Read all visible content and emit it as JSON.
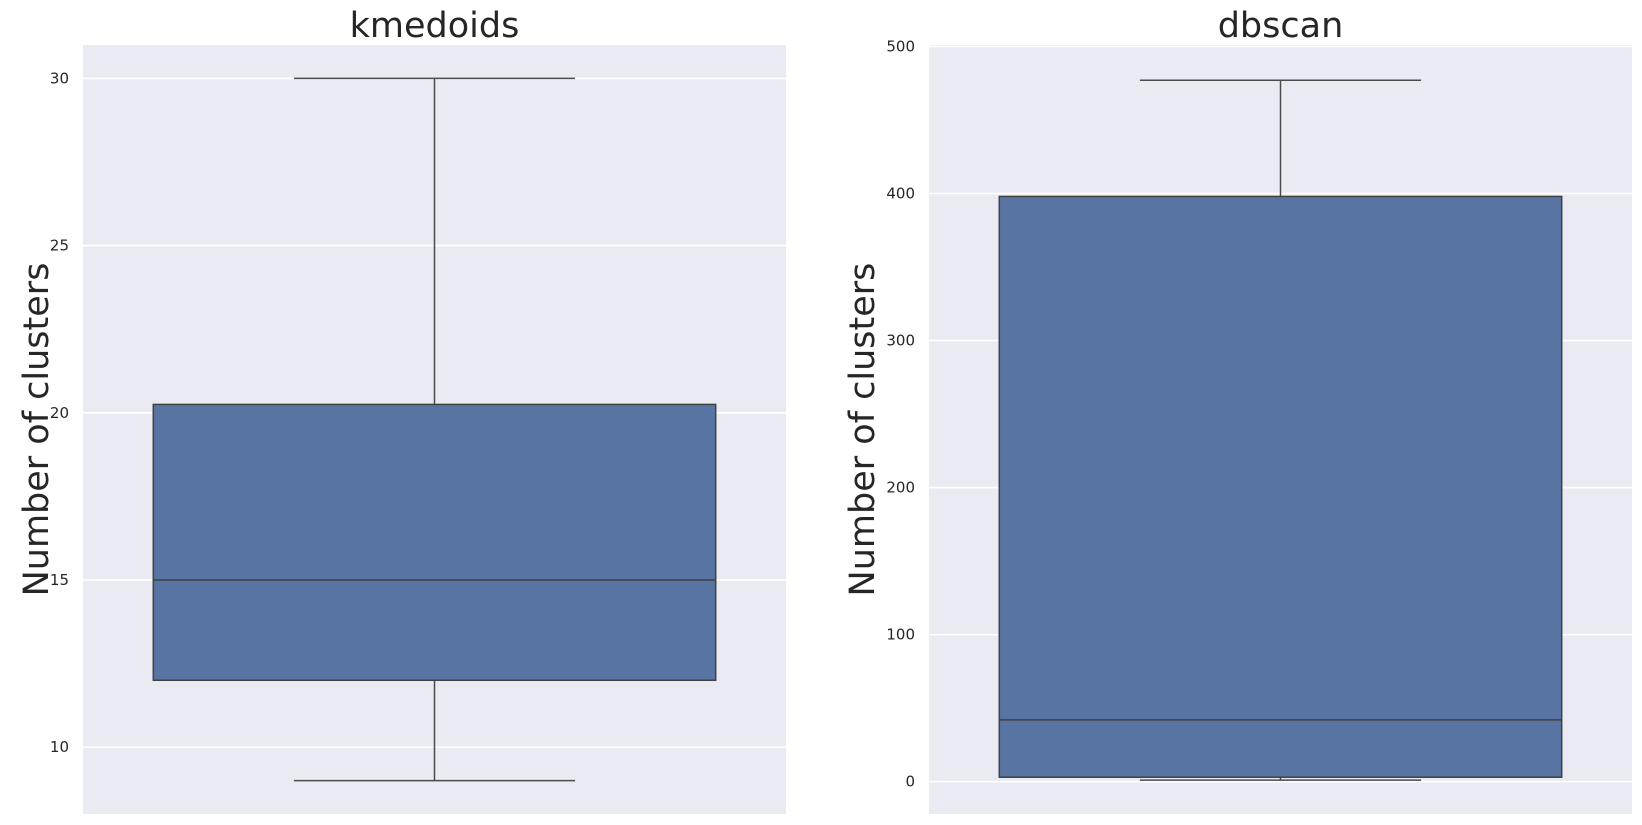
{
  "chart_data": [
    {
      "type": "box",
      "title": "kmedoids",
      "ylabel": "Number of clusters",
      "ylim": [
        8,
        31
      ],
      "yticks": [
        10,
        15,
        20,
        25,
        30
      ],
      "box": {
        "whisker_low": 9,
        "q1": 12,
        "median": 15,
        "q3": 20.25,
        "whisker_high": 30
      },
      "grid": true,
      "colors": {
        "box": "#5874a2",
        "background": "#eaeaf2"
      }
    },
    {
      "type": "box",
      "title": "dbscan",
      "ylabel": "Number of clusters",
      "ylim": [
        -22,
        501
      ],
      "yticks": [
        0,
        100,
        200,
        300,
        400,
        500
      ],
      "box": {
        "whisker_low": 1,
        "q1": 3,
        "median": 42,
        "q3": 398,
        "whisker_high": 477
      },
      "grid": true,
      "colors": {
        "box": "#5874a2",
        "background": "#eaeaf2"
      }
    }
  ]
}
